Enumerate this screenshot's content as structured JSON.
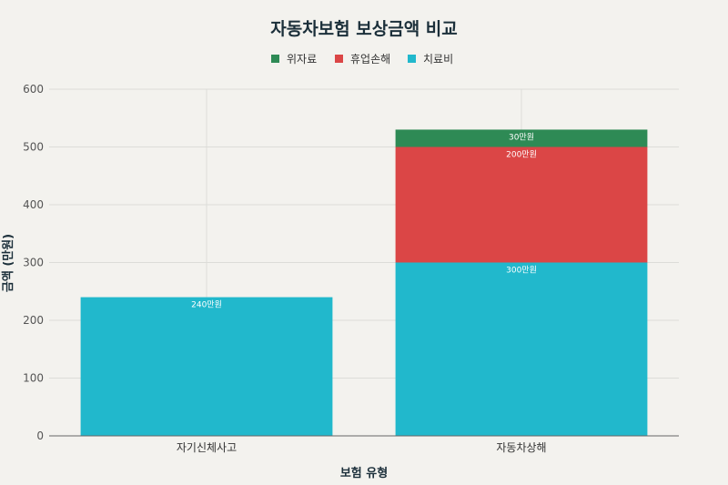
{
  "chart_data": {
    "type": "bar",
    "stacked": true,
    "title": "자동차보험 보상금액 비교",
    "xlabel": "보험 유형",
    "ylabel": "금액 (만원)",
    "ylim": [
      0,
      600
    ],
    "yticks": [
      0,
      100,
      200,
      300,
      400,
      500,
      600
    ],
    "grid": true,
    "legend_position": "top-center",
    "categories": [
      "자기신체사고",
      "자동차상해"
    ],
    "series": [
      {
        "name": "치료비",
        "color": "#21b8cc",
        "values": [
          240,
          300
        ],
        "labels": [
          "240만원",
          "300만원"
        ]
      },
      {
        "name": "휴업손해",
        "color": "#db4646",
        "values": [
          0,
          200
        ],
        "labels": [
          "",
          "200만원"
        ]
      },
      {
        "name": "위자료",
        "color": "#2e8a55",
        "values": [
          0,
          30
        ],
        "labels": [
          "",
          "30만원"
        ]
      }
    ],
    "legend_order": [
      "위자료",
      "휴업손해",
      "치료비"
    ]
  }
}
